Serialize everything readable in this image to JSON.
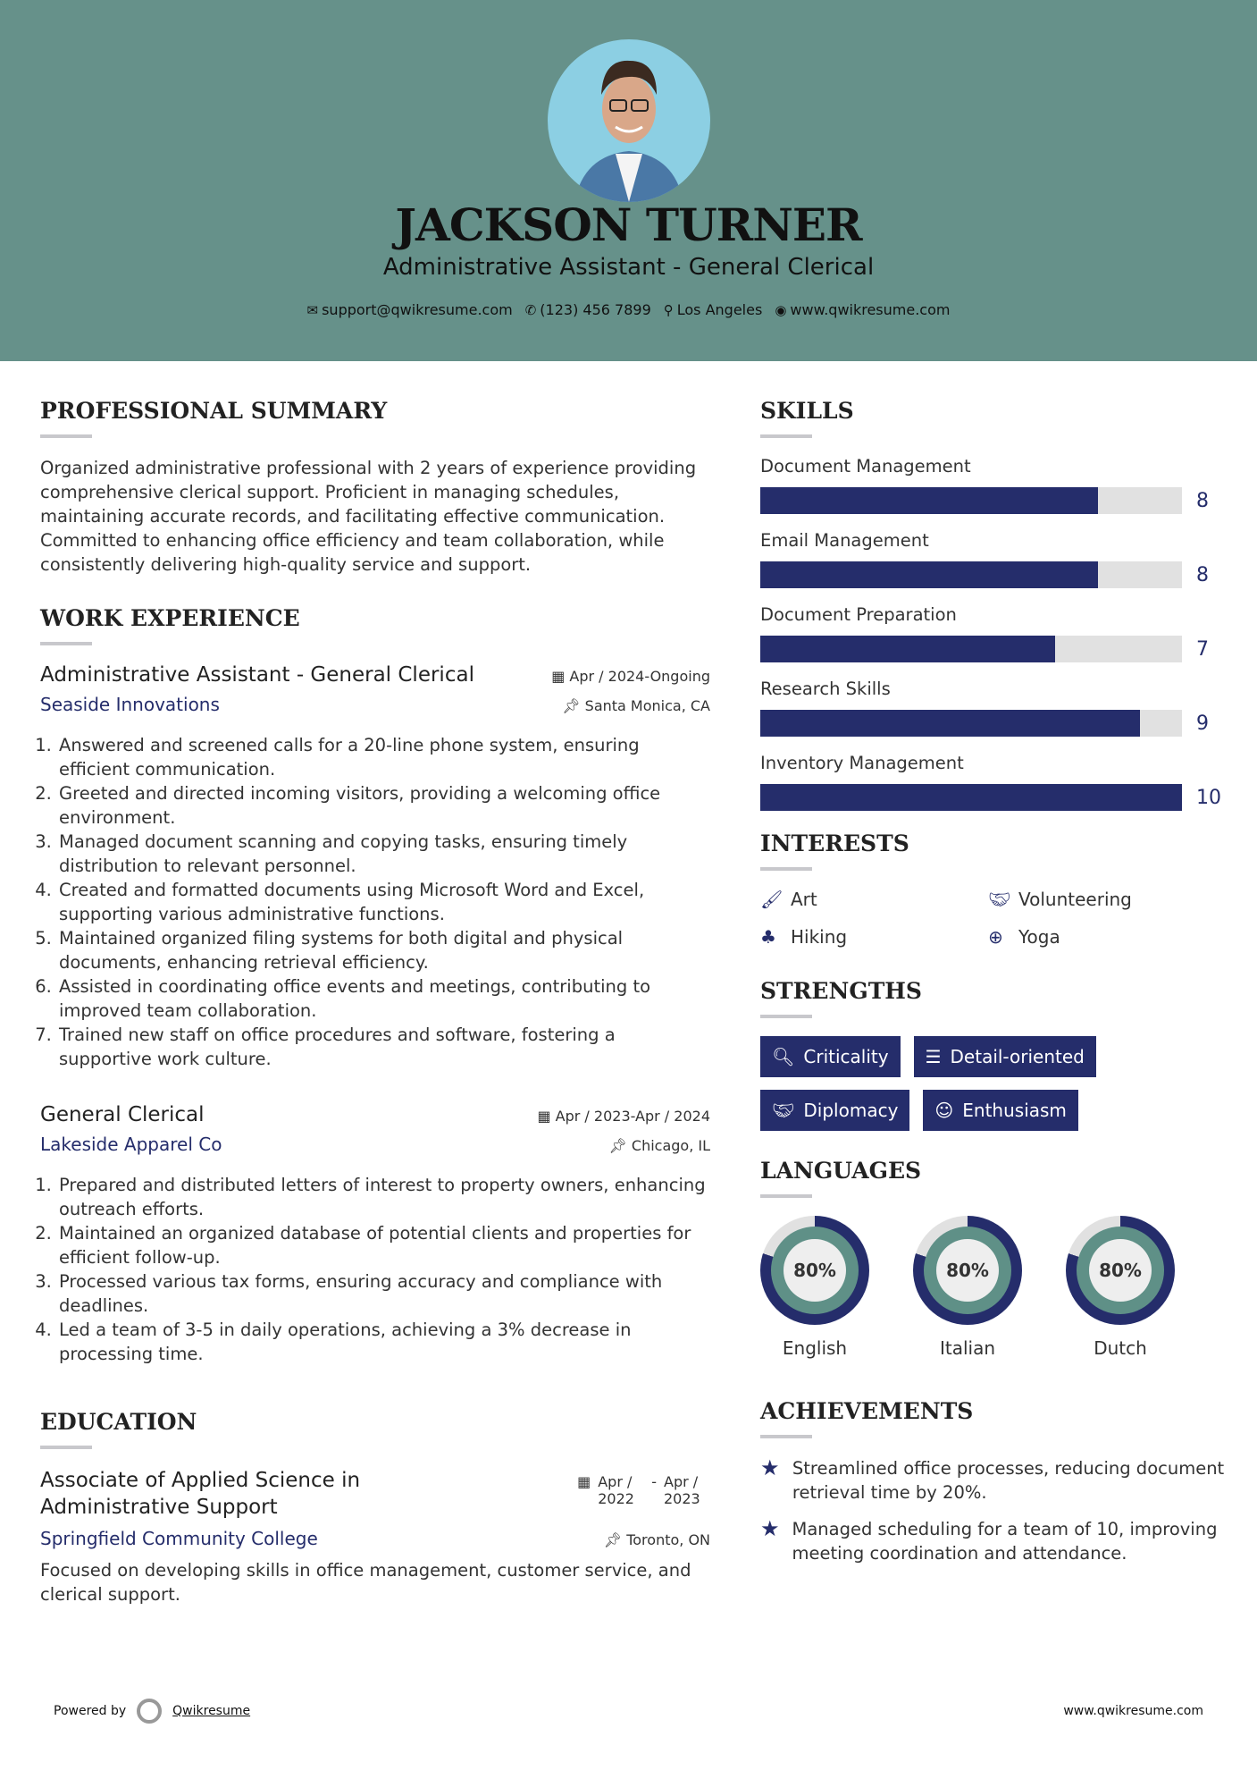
{
  "header": {
    "name": "JACKSON TURNER",
    "title": "Administrative Assistant - General Clerical",
    "contacts": [
      {
        "icon": "envelope-icon",
        "text": "support@qwikresume.com"
      },
      {
        "icon": "phone-icon",
        "text": "(123) 456 7899"
      },
      {
        "icon": "map-marker-icon",
        "text": "Los Angeles"
      },
      {
        "icon": "globe-icon",
        "text": "www.qwikresume.com"
      }
    ]
  },
  "summary": {
    "heading": "PROFESSIONAL SUMMARY",
    "text": "Organized administrative professional with 2 years of experience providing comprehensive clerical support. Proficient in managing schedules, maintaining accurate records, and facilitating effective communication. Committed to enhancing office efficiency and team collaboration, while consistently delivering high-quality service and support."
  },
  "experience": {
    "heading": "WORK EXPERIENCE",
    "jobs": [
      {
        "title": "Administrative Assistant - General Clerical",
        "dates": "Apr / 2024-Ongoing",
        "company": "Seaside Innovations",
        "location": "Santa Monica, CA",
        "bullets": [
          "Answered and screened calls for a 20-line phone system, ensuring efficient communication.",
          "Greeted and directed incoming visitors, providing a welcoming office environment.",
          "Managed document scanning and copying tasks, ensuring timely distribution to relevant personnel.",
          "Created and formatted documents using Microsoft Word and Excel, supporting various administrative functions.",
          "Maintained organized filing systems for both digital and physical documents, enhancing retrieval efficiency.",
          "Assisted in coordinating office events and meetings, contributing to improved team collaboration.",
          "Trained new staff on office procedures and software, fostering a supportive work culture."
        ]
      },
      {
        "title": "General Clerical",
        "dates": "Apr / 2023-Apr / 2024",
        "company": "Lakeside Apparel Co",
        "location": "Chicago, IL",
        "bullets": [
          "Prepared and distributed letters of interest to property owners, enhancing outreach efforts.",
          "Maintained an organized database of potential clients and properties for efficient follow-up.",
          "Processed various tax forms, ensuring accuracy and compliance with deadlines.",
          "Led a team of 3-5 in daily operations, achieving a 3% decrease in processing time."
        ]
      }
    ]
  },
  "education": {
    "heading": "EDUCATION",
    "degree": "Associate of Applied Science in Administrative Support",
    "start": "Apr / 2022",
    "end": "Apr / 2023",
    "school": "Springfield Community College",
    "location": "Toronto, ON",
    "text": "Focused on developing skills in office management, customer service, and clerical support."
  },
  "skills": {
    "heading": "SKILLS",
    "max": 10,
    "items": [
      {
        "name": "Document Management",
        "value": 8
      },
      {
        "name": "Email Management",
        "value": 8
      },
      {
        "name": "Document Preparation",
        "value": 7
      },
      {
        "name": "Research Skills",
        "value": 9
      },
      {
        "name": "Inventory Management",
        "value": 10
      }
    ]
  },
  "interests": {
    "heading": "INTERESTS",
    "items": [
      {
        "icon": "paintbrush-icon",
        "label": "Art"
      },
      {
        "icon": "handshake-icon",
        "label": "Volunteering"
      },
      {
        "icon": "tree-icon",
        "label": "Hiking"
      },
      {
        "icon": "life-ring-icon",
        "label": "Yoga"
      }
    ]
  },
  "strengths": {
    "heading": "STRENGTHS",
    "items": [
      {
        "icon": "search-icon",
        "label": "Criticality"
      },
      {
        "icon": "list-icon",
        "label": "Detail-oriented"
      },
      {
        "icon": "handshake-icon",
        "label": "Diplomacy"
      },
      {
        "icon": "smile-icon",
        "label": "Enthusiasm"
      }
    ]
  },
  "languages": {
    "heading": "LANGUAGES",
    "items": [
      {
        "name": "English",
        "percent": "80%"
      },
      {
        "name": "Italian",
        "percent": "80%"
      },
      {
        "name": "Dutch",
        "percent": "80%"
      }
    ]
  },
  "achievements": {
    "heading": "ACHIEVEMENTS",
    "items": [
      "Streamlined office processes, reducing document retrieval time by 20%.",
      "Managed scheduling for a team of 10, improving meeting coordination and attendance."
    ]
  },
  "footer": {
    "powered": "Powered by",
    "brand": "Qwikresume",
    "url": "www.qwikresume.com"
  },
  "colors": {
    "header": "#66918a",
    "accent": "#252d6b",
    "ring": "#5f9087"
  }
}
